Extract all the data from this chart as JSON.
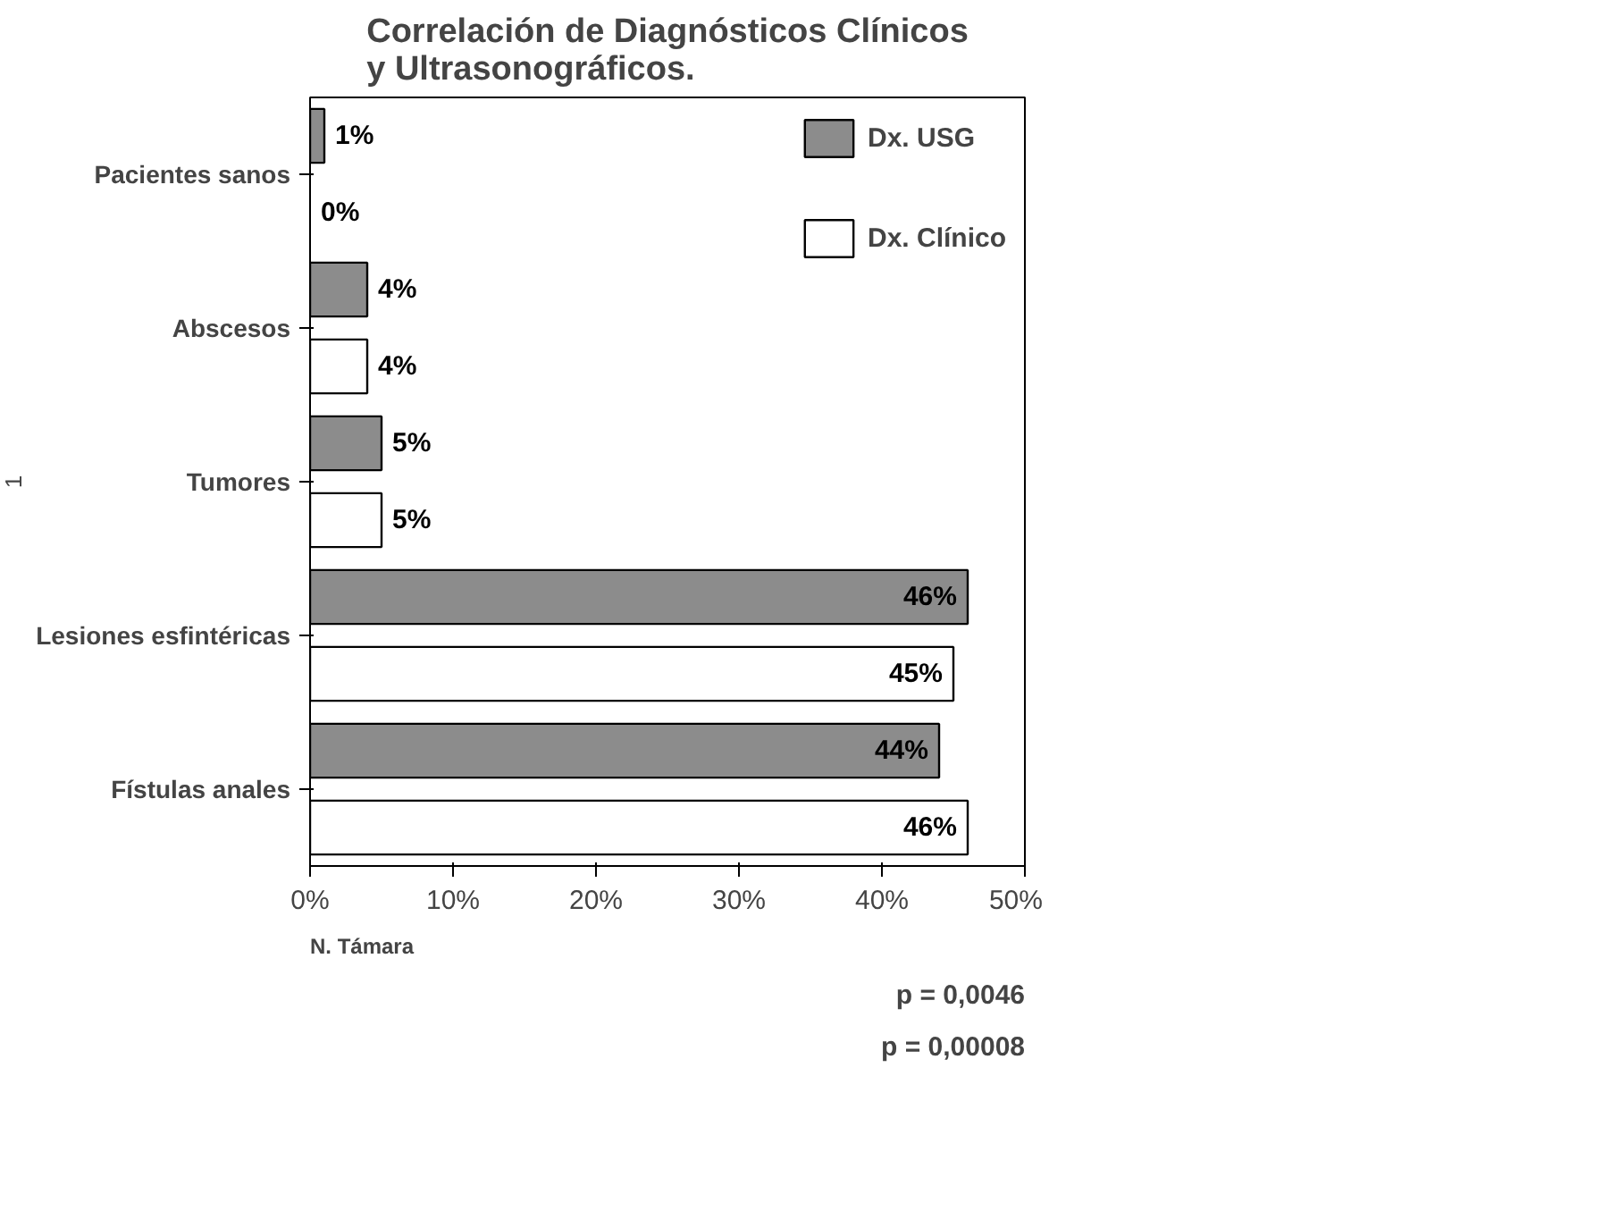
{
  "chart_data": {
    "type": "bar",
    "orientation": "horizontal",
    "title": "Correlación de Diagnósticos Clínicos\ny Ultrasonográficos.",
    "ylabel": "1",
    "categories": [
      "Pacientes sanos",
      "Abscesos",
      "Tumores",
      "Lesiones esfintéricas",
      "Fístulas anales"
    ],
    "series": [
      {
        "name": "Dx. USG",
        "color": "#8c8c8c",
        "values": [
          1,
          4,
          5,
          46,
          44
        ],
        "value_labels": [
          "1%",
          "4%",
          "5%",
          "46%",
          "44%"
        ]
      },
      {
        "name": "Dx. Clínico",
        "color": "#ffffff",
        "values": [
          0,
          4,
          5,
          45,
          46
        ],
        "value_labels": [
          "0%",
          "4%",
          "5%",
          "45%",
          "46%"
        ]
      }
    ],
    "xlim": [
      0,
      50
    ],
    "xticks": [
      {
        "value": 0,
        "label": "0%"
      },
      {
        "value": 10,
        "label": "10%"
      },
      {
        "value": 20,
        "label": "20%"
      },
      {
        "value": 30,
        "label": "30%"
      },
      {
        "value": 40,
        "label": "40%"
      },
      {
        "value": 50,
        "label": "50%"
      }
    ],
    "grid": false,
    "legend": "top right",
    "annotations": [
      "N. Támara",
      "p = 0,0046",
      "p = 0,00008"
    ]
  }
}
